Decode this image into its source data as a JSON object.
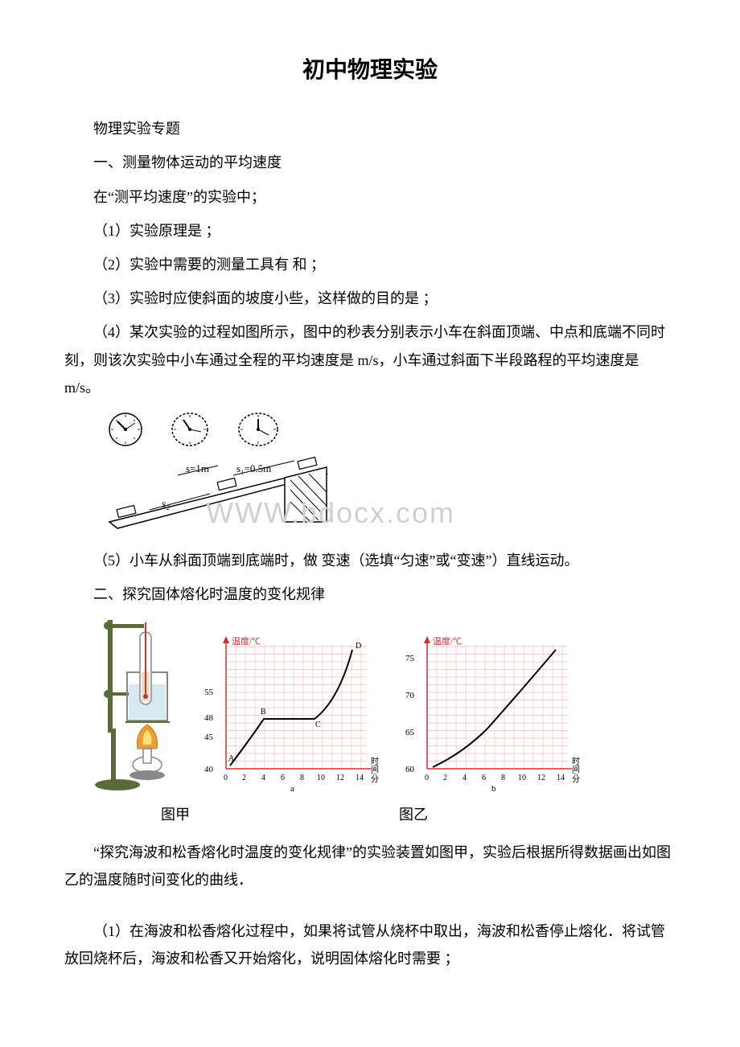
{
  "title": "初中物理实验",
  "section_header": "物理实验专题",
  "part1": {
    "heading": "一、测量物体运动的平均速度",
    "intro": "在“测平均速度”的实验中；",
    "q1": "（1）实验原理是 ；",
    "q2": "（2）实验中需要的测量工具有 和 ；",
    "q3": "（3）实验时应使斜面的坡度小些，这样做的目的是 ；",
    "q4": "（4）某次实验的过程如图所示，图中的秒表分别表示小车在斜面顶端、中点和底端不同时刻，则该次实验中小车通过全程的平均速度是 m/s，小车通过斜面下半段路程的平均速度是 m/s。",
    "q5": "（5）小车从斜面顶端到底端时，做 变速（选填“匀速”或“变速”）直线运动。",
    "figure": {
      "label_s": "s=1m",
      "label_s1": "s₁=0.5m",
      "label_s2": "s₂",
      "clocks": [
        {
          "hour": 10,
          "min": 8
        },
        {
          "hour": 10,
          "min": 2
        },
        {
          "hour": 12,
          "min": 4
        }
      ]
    }
  },
  "watermark_text": "WWW.bdocx.com",
  "part2": {
    "heading": "二、探究固体熔化时温度的变化规律",
    "caption_left": "图甲",
    "caption_right": "图乙",
    "desc": "“探究海波和松香熔化时温度的变化规律”的实验装置如图甲，实验后根据所得数据画出如图乙的温度随时间变化的曲线．",
    "q1": "（1）在海波和松香熔化过程中，如果将试管从烧杯中取出，海波和松香停止熔化．将试管放回烧杯后，海波和松香又开始熔化，说明固体熔化时需要 ；",
    "chart_a": {
      "ylabel": "温度/℃",
      "xlabel_img": "时间/分",
      "y_ticks": [
        40,
        45,
        48,
        55
      ],
      "x_ticks": [
        0,
        2,
        4,
        6,
        8,
        10,
        12,
        14
      ],
      "points": {
        "A": [
          0.5,
          40.5
        ],
        "B": [
          4,
          48
        ],
        "C": [
          9,
          48
        ],
        "D": [
          13,
          57
        ]
      },
      "grid_color": "#f4bdbd",
      "axis_color": "#c83232",
      "label": "a"
    },
    "chart_b": {
      "ylabel": "温度/℃",
      "xlabel_img": "时间/分",
      "y_ticks": [
        60,
        65,
        70,
        75
      ],
      "x_ticks": [
        0,
        2,
        4,
        6,
        8,
        10,
        12,
        14
      ],
      "grid_color": "#f4bdbd",
      "axis_color": "#c83232",
      "label": "b"
    },
    "apparatus_colors": {
      "stand": "#5a6b3a",
      "flame": "#e8a030",
      "beaker": "#888",
      "water": "#d8e8f0"
    }
  }
}
